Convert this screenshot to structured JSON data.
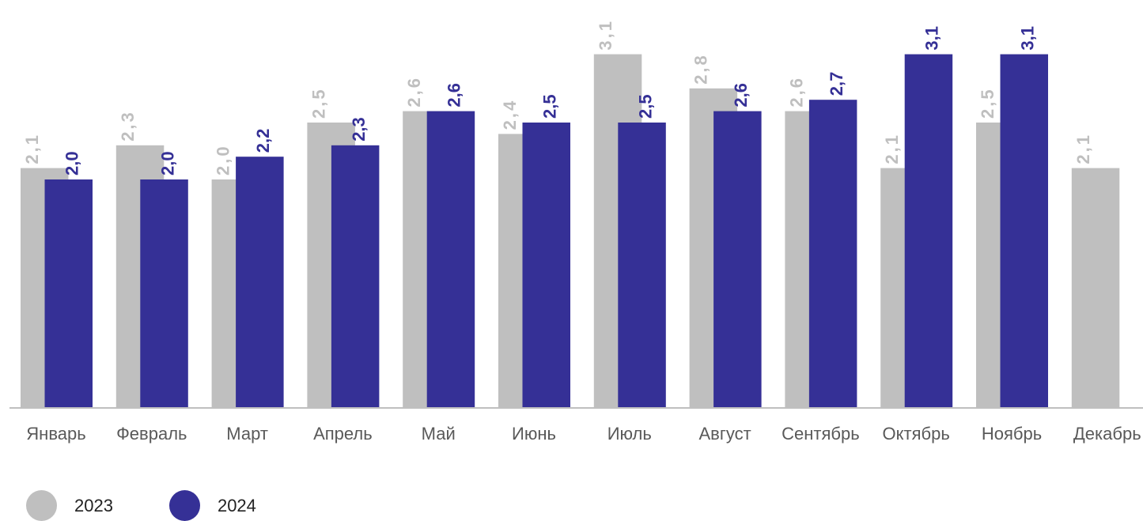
{
  "chart_data": {
    "type": "bar",
    "categories": [
      "Январь",
      "Февраль",
      "Март",
      "Апрель",
      "Май",
      "Июнь",
      "Июль",
      "Август",
      "Сентябрь",
      "Октябрь",
      "Ноябрь",
      "Декабрь"
    ],
    "series": [
      {
        "name": "2023",
        "color": "#bfbfbf",
        "values": [
          2.1,
          2.3,
          2.0,
          2.5,
          2.6,
          2.4,
          3.1,
          2.8,
          2.6,
          2.1,
          2.5,
          2.1
        ],
        "labels": [
          "2,1",
          "2,3",
          "2,0",
          "2,5",
          "2,6",
          "2,4",
          "3,1",
          "2,8",
          "2,6",
          "2,1",
          "2,5",
          "2,1"
        ]
      },
      {
        "name": "2024",
        "color": "#353096",
        "values": [
          2.0,
          2.0,
          2.2,
          2.3,
          2.6,
          2.5,
          2.5,
          2.6,
          2.7,
          3.1,
          3.1,
          null
        ],
        "labels": [
          "2,0",
          "2,0",
          "2,2",
          "2,3",
          "2,6",
          "2,5",
          "2,5",
          "2,6",
          "2,7",
          "3,1",
          "3,1",
          ""
        ]
      }
    ],
    "ylim": [
      0,
      3.5
    ],
    "grid": false,
    "legend_position": "bottom-left",
    "title": "",
    "xlabel": "",
    "ylabel": ""
  },
  "legend": {
    "items": [
      {
        "label": "2023",
        "color": "#bfbfbf"
      },
      {
        "label": "2024",
        "color": "#353096"
      }
    ]
  }
}
